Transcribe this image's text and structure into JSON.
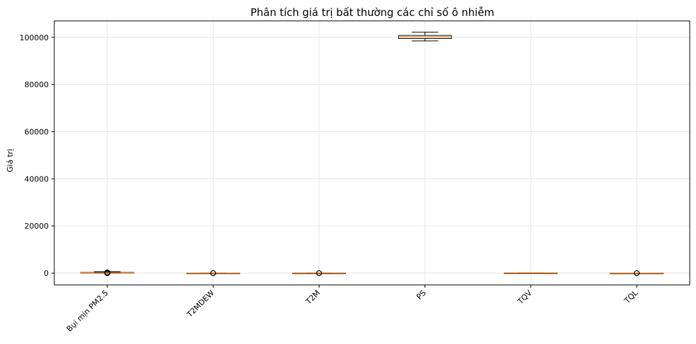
{
  "chart_data": {
    "type": "box",
    "title": "Phân tích giá trị bất thường các chỉ số ô nhiễm",
    "xlabel": "",
    "ylabel": "Giá trị",
    "categories": [
      "Bụi mịn PM2.5",
      "T2MDEW",
      "T2M",
      "PS",
      "TQV",
      "TQL"
    ],
    "ylim": [
      -5000,
      107000
    ],
    "yticks": [
      0,
      20000,
      40000,
      60000,
      80000,
      100000
    ],
    "grid": true,
    "colors": {
      "box_edge": "#000000",
      "median": "#ff7f0e",
      "grid": "#e6e6e6"
    },
    "boxes": [
      {
        "whisker_low": 0,
        "q1": 60,
        "median": 150,
        "q3": 300,
        "whisker_high": 600,
        "outliers": [
          0,
          150,
          300
        ]
      },
      {
        "whisker_low": 0,
        "q1": 10,
        "median": 15,
        "q3": 20,
        "whisker_high": 30,
        "outliers": [
          0
        ]
      },
      {
        "whisker_low": 0,
        "q1": 20,
        "median": 25,
        "q3": 30,
        "whisker_high": 40,
        "outliers": [
          0
        ]
      },
      {
        "whisker_low": 98500,
        "q1": 99500,
        "median": 100200,
        "q3": 100800,
        "whisker_high": 102200,
        "outliers": []
      },
      {
        "whisker_low": 0,
        "q1": 20,
        "median": 40,
        "q3": 60,
        "whisker_high": 80,
        "outliers": []
      },
      {
        "whisker_low": 0,
        "q1": 0,
        "median": 0.05,
        "q3": 0.1,
        "whisker_high": 0.2,
        "outliers": [
          0
        ]
      }
    ]
  }
}
